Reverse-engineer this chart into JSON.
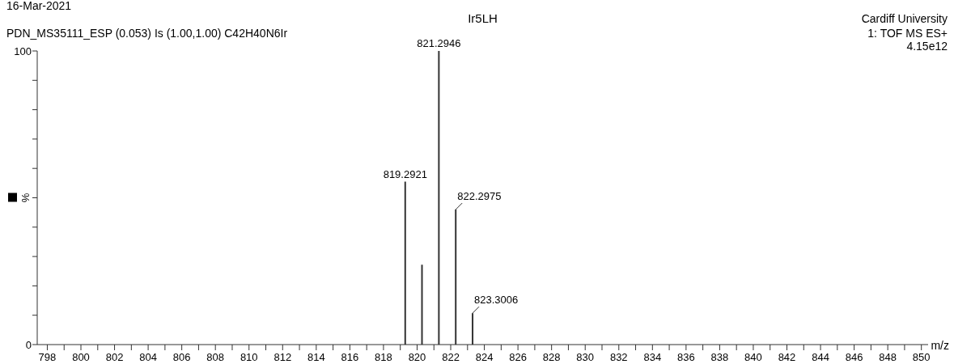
{
  "chart_data": {
    "type": "bar",
    "title": "Ir5LH",
    "annotations": [
      "16-Mar-2021",
      "PDN_MS35111_ESP  (0.053) Is (1.00,1.00) C42H40N6Ir",
      "Cardiff University",
      "1: TOF MS ES+",
      "4.15e12",
      {
        "text": "819.2921",
        "x": 819.2921,
        "y": 55.5
      },
      {
        "text": "821.2946",
        "x": 821.2946,
        "y": 100
      },
      {
        "text": "822.2975",
        "x": 822.2975,
        "y": 46
      },
      {
        "text": "823.3006",
        "x": 823.3006,
        "y": 10.7
      }
    ],
    "x": [
      819.2921,
      820.29,
      821.2946,
      822.2975,
      823.3006
    ],
    "values": [
      55.5,
      27.2,
      100,
      46,
      10.7
    ],
    "color": "#333333",
    "xlabel": "m/z",
    "ylabel": "%",
    "xlim": [
      797.4,
      850.4
    ],
    "xticks": [
      798,
      {
        "value": 799,
        "label": null
      },
      800,
      {
        "value": 801,
        "label": null
      },
      802,
      {
        "value": 803,
        "label": null
      },
      804,
      {
        "value": 805,
        "label": null
      },
      806,
      {
        "value": 807,
        "label": null
      },
      808,
      {
        "value": 809,
        "label": null
      },
      810,
      {
        "value": 811,
        "label": null
      },
      812,
      {
        "value": 813,
        "label": null
      },
      814,
      {
        "value": 815,
        "label": null
      },
      816,
      {
        "value": 817,
        "label": null
      },
      818,
      {
        "value": 819,
        "label": null
      },
      820,
      {
        "value": 821,
        "label": null
      },
      822,
      {
        "value": 823,
        "label": null
      },
      824,
      {
        "value": 825,
        "label": null
      },
      826,
      {
        "value": 827,
        "label": null
      },
      828,
      {
        "value": 829,
        "label": null
      },
      830,
      {
        "value": 831,
        "label": null
      },
      832,
      {
        "value": 833,
        "label": null
      },
      834,
      {
        "value": 835,
        "label": null
      },
      836,
      {
        "value": 837,
        "label": null
      },
      838,
      {
        "value": 839,
        "label": null
      },
      840,
      {
        "value": 841,
        "label": null
      },
      842,
      {
        "value": 843,
        "label": null
      },
      844,
      {
        "value": 845,
        "label": null
      },
      846,
      {
        "value": 847,
        "label": null
      },
      848,
      {
        "value": 849,
        "label": null
      },
      850
    ],
    "ylim": [
      0,
      100
    ],
    "yticks": [
      0,
      {
        "value": 10,
        "label": null
      },
      {
        "value": 20,
        "label": null
      },
      {
        "value": 30,
        "label": null
      },
      {
        "value": 40,
        "label": null
      },
      {
        "value": 50,
        "label": null
      },
      {
        "value": 60,
        "label": null
      },
      {
        "value": 70,
        "label": null
      },
      {
        "value": 80,
        "label": null
      },
      {
        "value": 90,
        "label": null
      },
      100
    ],
    "grid": false
  }
}
